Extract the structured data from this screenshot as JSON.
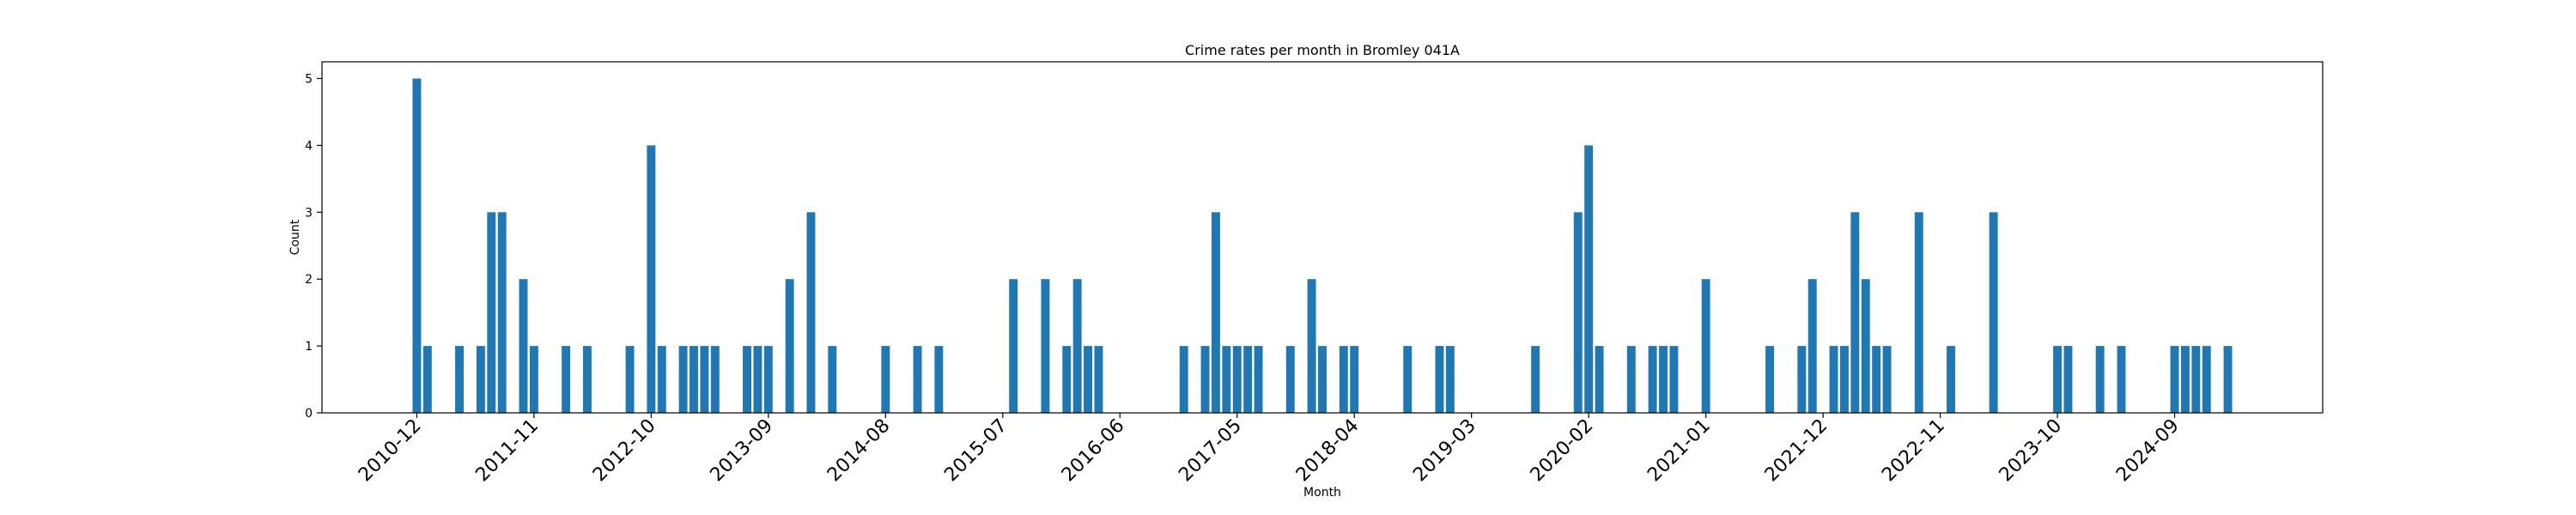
{
  "chart_data": {
    "type": "bar",
    "title": "Crime rates per month in Bromley 041A",
    "xlabel": "Month",
    "ylabel": "Count",
    "ylim": [
      0,
      5.25
    ],
    "yticks": [
      0,
      1,
      2,
      3,
      4,
      5
    ],
    "xtick_labels": [
      "2010-12",
      "2011-11",
      "2012-10",
      "2013-09",
      "2014-08",
      "2015-07",
      "2016-06",
      "2017-05",
      "2018-04",
      "2019-03",
      "2020-02",
      "2021-01",
      "2021-12",
      "2022-11",
      "2023-10",
      "2024-09"
    ],
    "grid": false,
    "x": [
      "2010-12",
      "2011-01",
      "2011-04",
      "2011-06",
      "2011-07",
      "2011-08",
      "2011-10",
      "2011-11",
      "2012-02",
      "2012-04",
      "2012-08",
      "2012-10",
      "2012-11",
      "2013-01",
      "2013-02",
      "2013-03",
      "2013-04",
      "2013-07",
      "2013-08",
      "2013-09",
      "2013-11",
      "2014-01",
      "2014-03",
      "2014-08",
      "2014-11",
      "2015-01",
      "2015-08",
      "2015-11",
      "2016-01",
      "2016-02",
      "2016-03",
      "2016-04",
      "2016-12",
      "2017-02",
      "2017-03",
      "2017-04",
      "2017-05",
      "2017-06",
      "2017-07",
      "2017-10",
      "2017-12",
      "2018-01",
      "2018-03",
      "2018-04",
      "2018-09",
      "2018-12",
      "2019-01",
      "2019-09",
      "2020-01",
      "2020-02",
      "2020-03",
      "2020-06",
      "2020-08",
      "2020-09",
      "2020-10",
      "2021-01",
      "2021-07",
      "2021-10",
      "2021-11",
      "2022-01",
      "2022-02",
      "2022-03",
      "2022-04",
      "2022-05",
      "2022-06",
      "2022-09",
      "2022-12",
      "2023-04",
      "2023-10",
      "2023-11",
      "2024-02",
      "2024-04",
      "2024-09",
      "2024-10",
      "2024-11",
      "2024-12",
      "2025-02"
    ],
    "values": [
      5,
      1,
      1,
      1,
      3,
      3,
      2,
      1,
      1,
      1,
      1,
      4,
      1,
      1,
      1,
      1,
      1,
      1,
      1,
      1,
      2,
      3,
      1,
      1,
      1,
      1,
      2,
      2,
      1,
      2,
      1,
      1,
      1,
      1,
      3,
      1,
      1,
      1,
      1,
      1,
      2,
      1,
      1,
      1,
      1,
      1,
      1,
      1,
      3,
      4,
      1,
      1,
      1,
      1,
      1,
      2,
      1,
      1,
      2,
      1,
      1,
      3,
      2,
      1,
      1,
      3,
      1,
      3,
      1,
      1,
      1,
      1,
      1,
      1,
      1,
      1,
      1
    ]
  }
}
